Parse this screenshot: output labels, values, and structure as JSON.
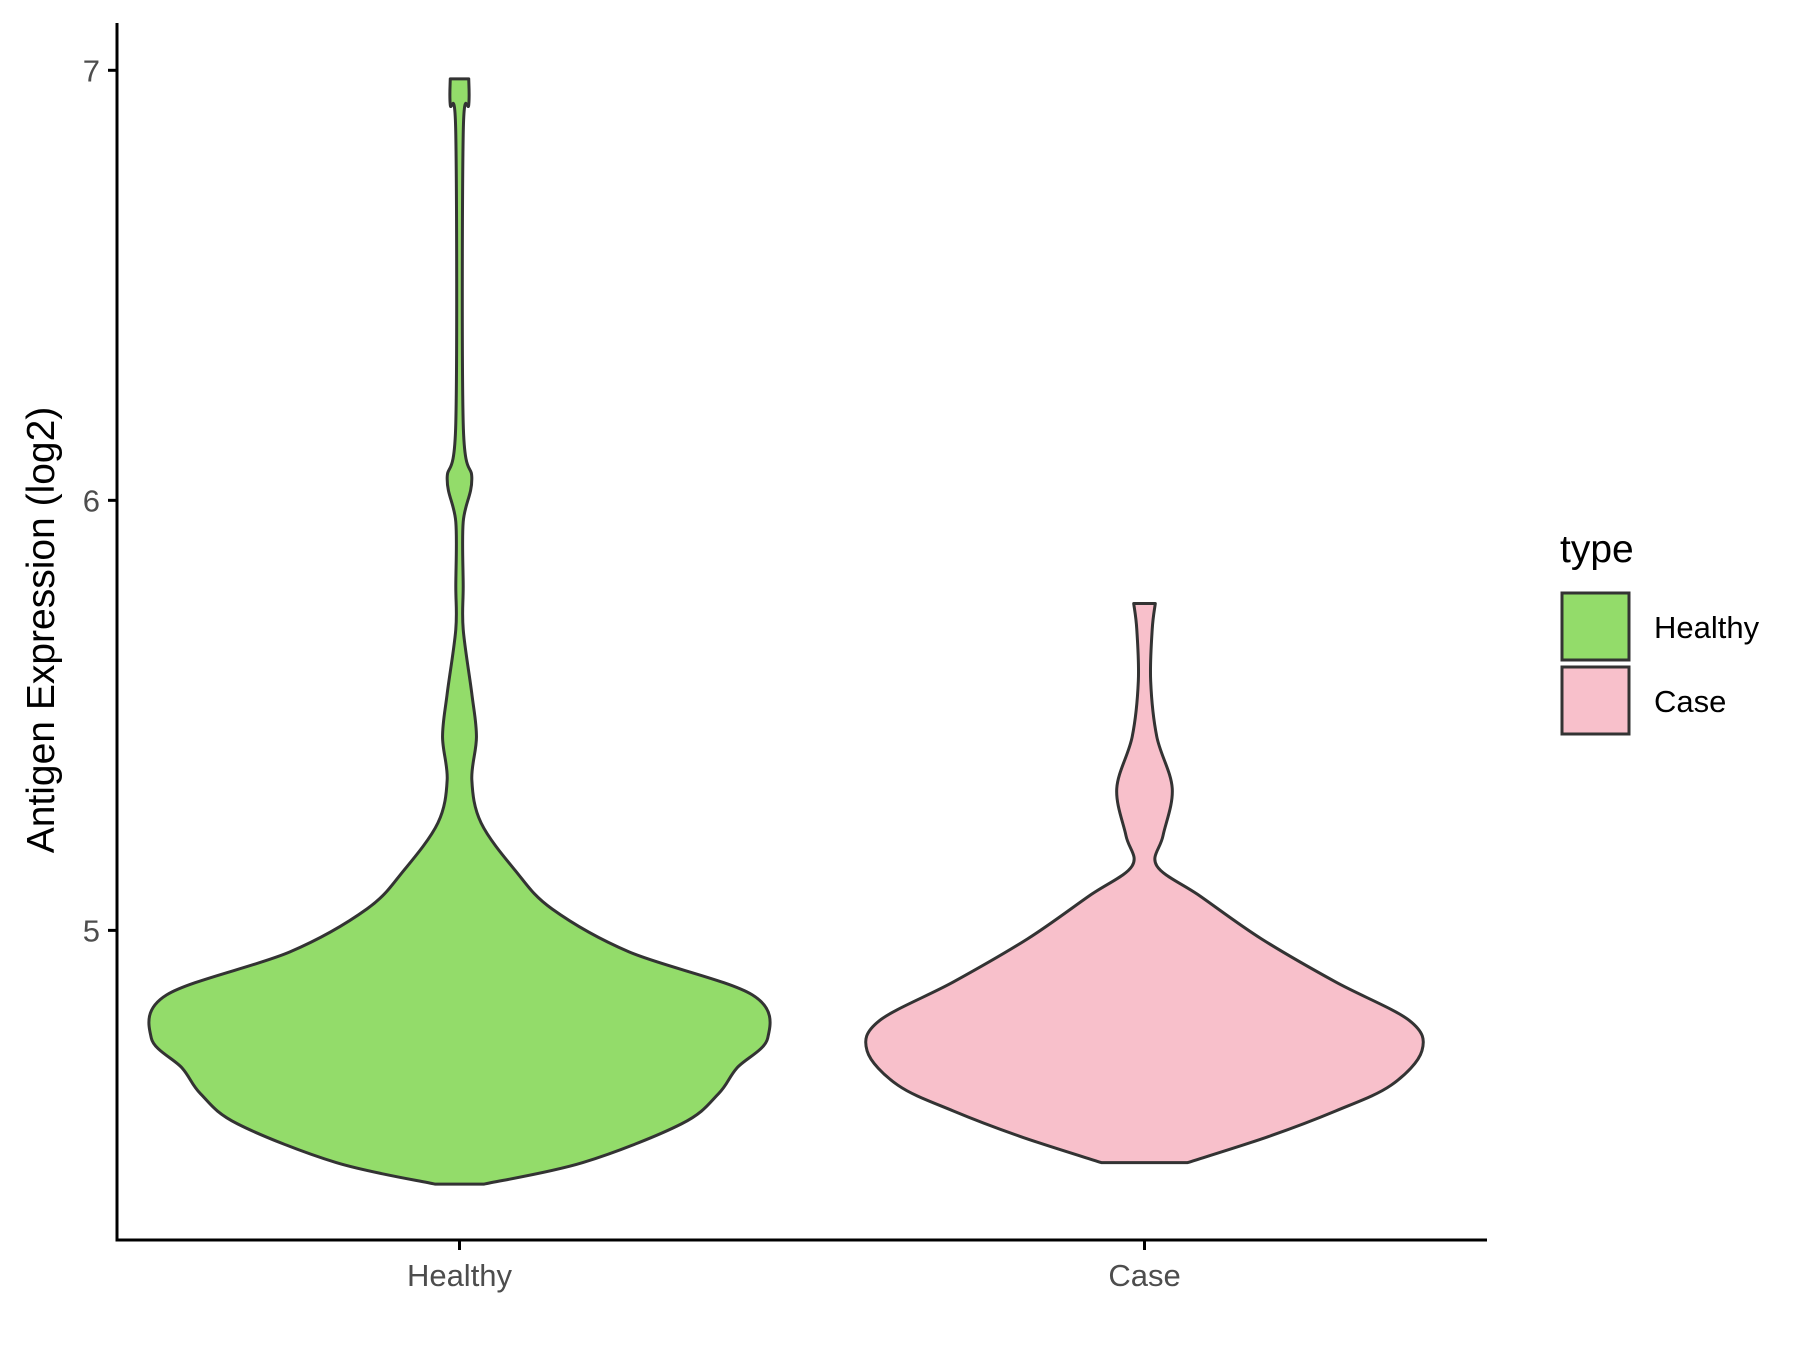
{
  "chart_data": {
    "type": "violin",
    "title": "",
    "xlabel": "",
    "ylabel": "Antigen Expression (log2)",
    "categories": [
      "Healthy",
      "Case"
    ],
    "yticks": [
      5,
      6,
      7
    ],
    "ylim": [
      4.28,
      7.11
    ],
    "grid": false,
    "legend": {
      "title": "type",
      "position": "right",
      "entries": [
        {
          "label": "Healthy",
          "color": "#93dc6a"
        },
        {
          "label": "Case",
          "color": "#f8c0cb"
        }
      ]
    },
    "series": [
      {
        "name": "Healthy",
        "color": "#93dc6a",
        "density_profile": [
          [
            4.41,
            0.08
          ],
          [
            4.46,
            0.4
          ],
          [
            4.55,
            0.72
          ],
          [
            4.62,
            0.84
          ],
          [
            4.68,
            0.9
          ],
          [
            4.75,
            1.0
          ],
          [
            4.85,
            0.95
          ],
          [
            4.95,
            0.55
          ],
          [
            5.05,
            0.3
          ],
          [
            5.14,
            0.18
          ],
          [
            5.25,
            0.07
          ],
          [
            5.35,
            0.04
          ],
          [
            5.45,
            0.055
          ],
          [
            5.55,
            0.04
          ],
          [
            5.7,
            0.012
          ],
          [
            5.8,
            0.012
          ],
          [
            5.95,
            0.012
          ],
          [
            6.05,
            0.04
          ],
          [
            6.18,
            0.012
          ],
          [
            6.85,
            0.012
          ],
          [
            6.92,
            0.03
          ],
          [
            6.98,
            0.03
          ]
        ]
      },
      {
        "name": "Case",
        "color": "#f8c0cb",
        "density_profile": [
          [
            4.46,
            0.14
          ],
          [
            4.52,
            0.4
          ],
          [
            4.58,
            0.62
          ],
          [
            4.64,
            0.8
          ],
          [
            4.72,
            0.9
          ],
          [
            4.79,
            0.86
          ],
          [
            4.88,
            0.62
          ],
          [
            4.98,
            0.38
          ],
          [
            5.08,
            0.18
          ],
          [
            5.15,
            0.04
          ],
          [
            5.22,
            0.06
          ],
          [
            5.33,
            0.09
          ],
          [
            5.45,
            0.04
          ],
          [
            5.58,
            0.02
          ],
          [
            5.7,
            0.025
          ],
          [
            5.76,
            0.035
          ]
        ]
      }
    ]
  }
}
